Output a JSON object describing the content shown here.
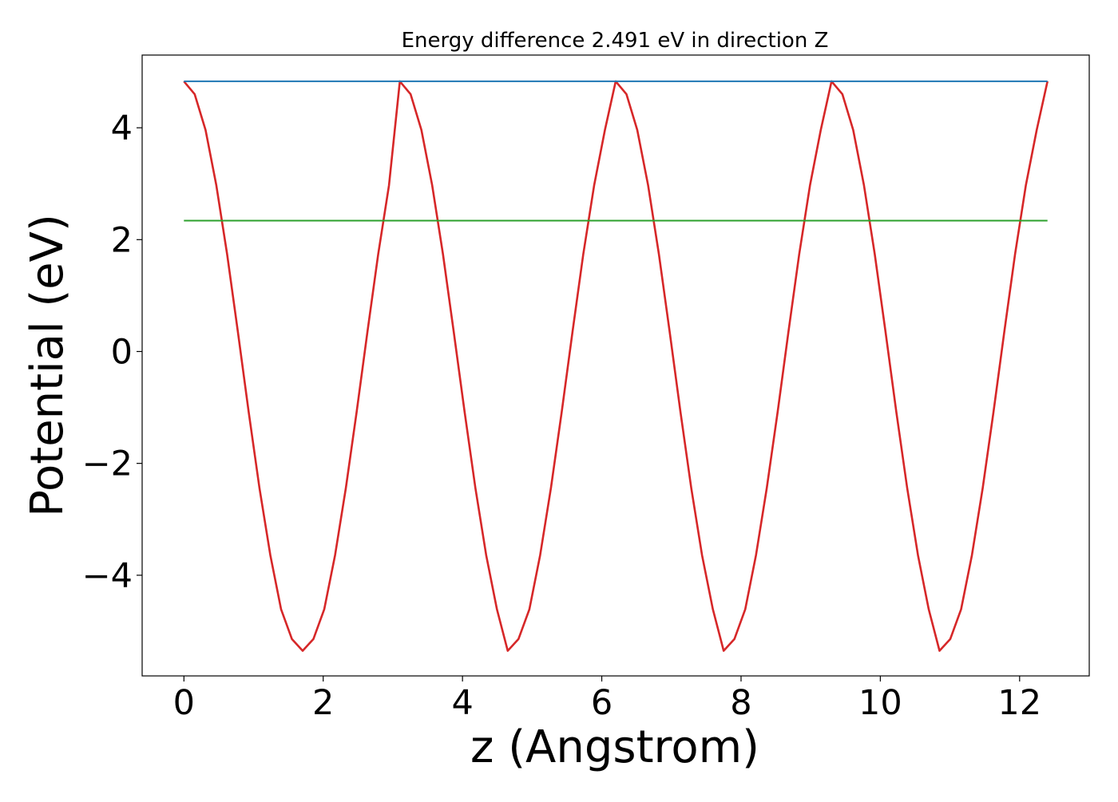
{
  "chart_data": {
    "type": "line",
    "title": "Energy difference 2.491 eV in direction Z",
    "xlabel": "z (Angstrom)",
    "ylabel": "Potential (eV)",
    "xlim": [
      -0.6,
      13.0
    ],
    "ylim": [
      -5.8,
      5.3
    ],
    "x_ticks": [
      0,
      2,
      4,
      6,
      8,
      10,
      12
    ],
    "x_tick_labels": [
      "0",
      "2",
      "4",
      "6",
      "8",
      "10",
      "12"
    ],
    "y_ticks": [
      -4,
      -2,
      0,
      2,
      4
    ],
    "y_tick_labels": [
      "−4",
      "−2",
      "0",
      "2",
      "4"
    ],
    "grid": false,
    "series": [
      {
        "color": "#d62728",
        "x": [
          0.0,
          0.155,
          0.31,
          0.465,
          0.62,
          0.775,
          0.93,
          1.085,
          1.24,
          1.395,
          1.55,
          1.705,
          1.86,
          2.015,
          2.17,
          2.325,
          2.48,
          2.635,
          2.79,
          2.945,
          3.1,
          3.255,
          3.41,
          3.565,
          3.72,
          3.875,
          4.03,
          4.185,
          4.34,
          4.495,
          4.65,
          4.805,
          4.96,
          5.115,
          5.27,
          5.425,
          5.58,
          5.735,
          5.89,
          6.045,
          6.2,
          6.355,
          6.51,
          6.665,
          6.82,
          6.975,
          7.13,
          7.285,
          7.44,
          7.595,
          7.75,
          7.905,
          8.06,
          8.215,
          8.37,
          8.525,
          8.68,
          8.835,
          8.99,
          9.145,
          9.3,
          9.455,
          9.61,
          9.765,
          9.92,
          10.075,
          10.23,
          10.385,
          10.54,
          10.695,
          10.85,
          11.005,
          11.16,
          11.315,
          11.47,
          11.625,
          11.78,
          11.935,
          12.09,
          12.245,
          12.4
        ],
        "y": [
          4.83,
          4.6,
          3.96,
          2.97,
          1.74,
          0.35,
          -1.08,
          -2.44,
          -3.64,
          -4.61,
          -5.14,
          -5.35,
          -5.14,
          -4.61,
          -3.64,
          -2.44,
          -1.08,
          0.35,
          1.74,
          2.97,
          4.83,
          4.6,
          3.96,
          2.97,
          1.74,
          0.35,
          -1.08,
          -2.44,
          -3.64,
          -4.61,
          -5.35,
          -5.14,
          -4.61,
          -3.64,
          -2.44,
          -1.08,
          0.35,
          1.74,
          2.97,
          3.96,
          4.83,
          4.6,
          3.96,
          2.97,
          1.74,
          0.35,
          -1.08,
          -2.44,
          -3.64,
          -4.61,
          -5.35,
          -5.14,
          -4.61,
          -3.64,
          -2.44,
          -1.08,
          0.35,
          1.74,
          2.97,
          3.96,
          4.83,
          4.6,
          3.96,
          2.97,
          1.74,
          0.35,
          -1.08,
          -2.44,
          -3.64,
          -4.61,
          -5.35,
          -5.14,
          -4.61,
          -3.64,
          -2.44,
          -1.08,
          0.35,
          1.74,
          2.97,
          3.96,
          4.83
        ]
      },
      {
        "color": "#1f77b4",
        "x": [
          0.0,
          12.4
        ],
        "y": [
          4.83,
          4.83
        ]
      },
      {
        "color": "#2ca02c",
        "x": [
          0.0,
          12.4
        ],
        "y": [
          2.34,
          2.34
        ]
      }
    ]
  }
}
